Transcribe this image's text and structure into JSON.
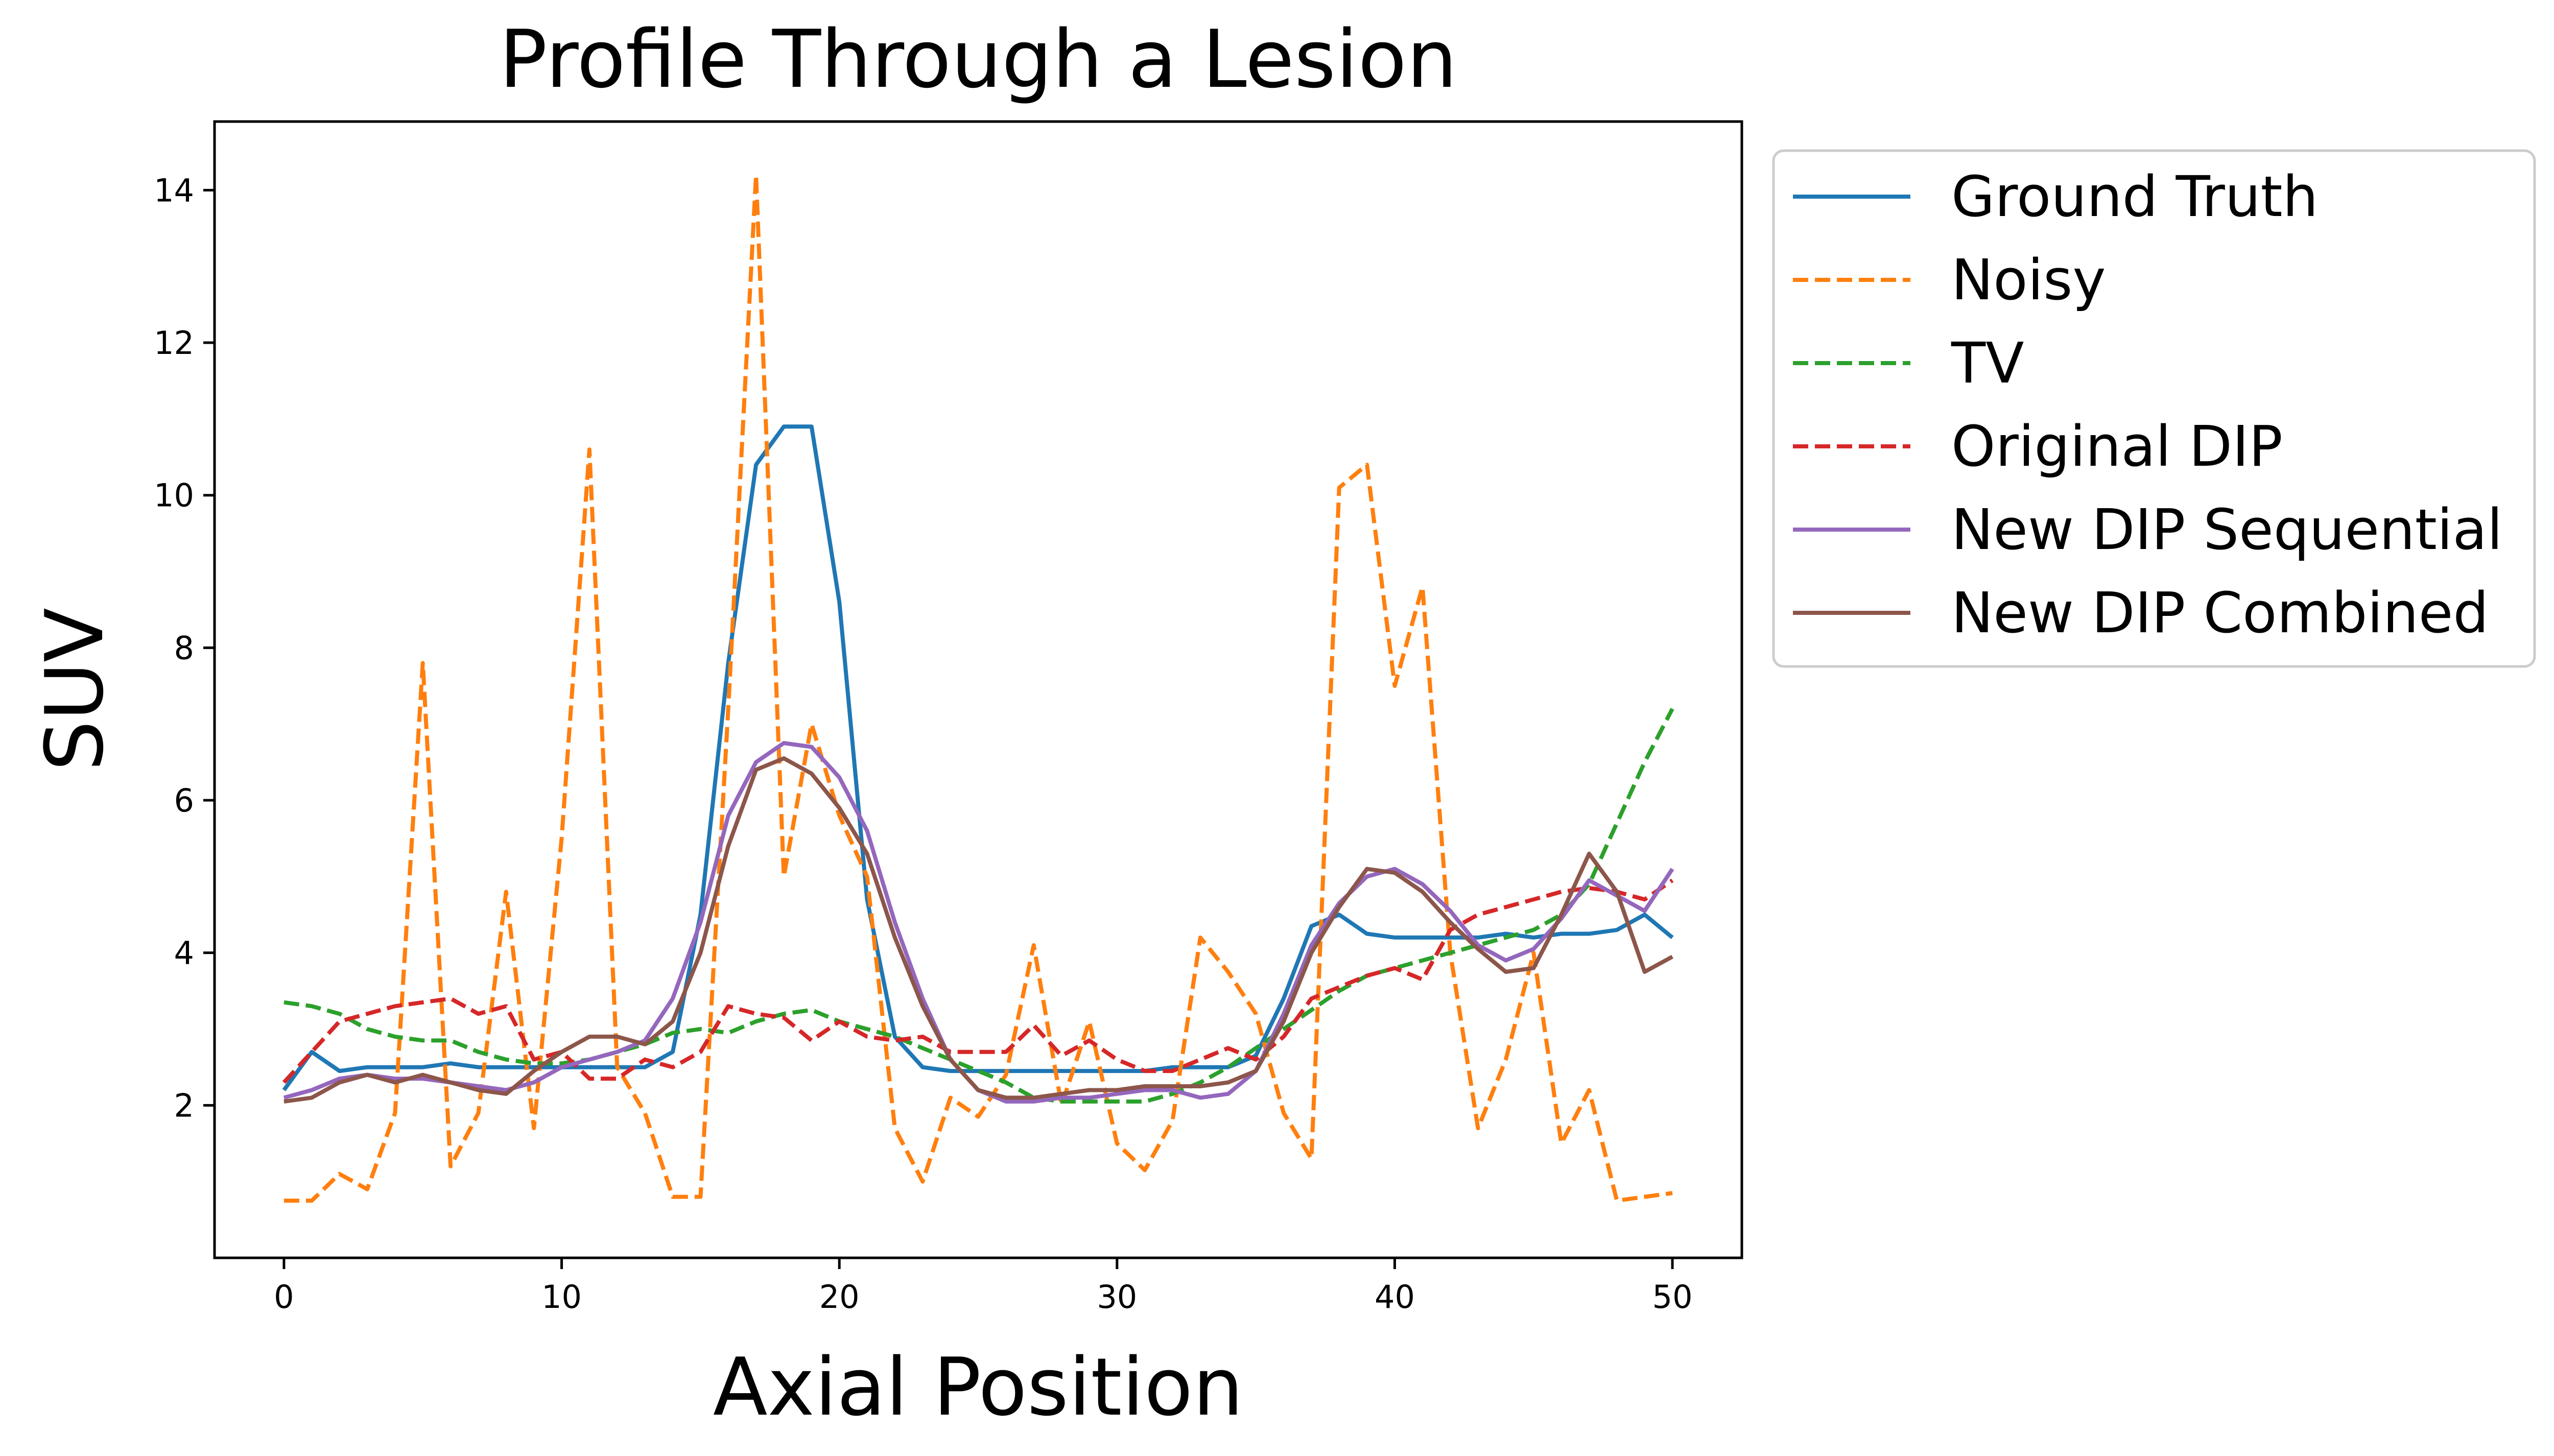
{
  "chart_data": {
    "type": "line",
    "title": "Profile Through a Lesion",
    "xlabel": "Axial Position",
    "ylabel": "SUV",
    "xlim": [
      -2.5,
      52.5
    ],
    "ylim": [
      0,
      14.9
    ],
    "xticks": [
      0,
      10,
      20,
      30,
      40,
      50
    ],
    "yticks": [
      2,
      4,
      6,
      8,
      10,
      12,
      14
    ],
    "grid": false,
    "legend_placement": "outside top-right",
    "series": [
      {
        "name": "Ground Truth",
        "color": "#1f77b4",
        "dash": "solid",
        "values": [
          2.2,
          2.7,
          2.45,
          2.5,
          2.5,
          2.5,
          2.55,
          2.5,
          2.5,
          2.5,
          2.5,
          2.5,
          2.5,
          2.5,
          2.7,
          4.5,
          7.8,
          10.4,
          10.9,
          10.9,
          8.6,
          4.7,
          2.9,
          2.5,
          2.45,
          2.45,
          2.45,
          2.45,
          2.45,
          2.45,
          2.45,
          2.45,
          2.5,
          2.5,
          2.5,
          2.65,
          3.4,
          4.35,
          4.5,
          4.25,
          4.2,
          4.2,
          4.2,
          4.2,
          4.25,
          4.2,
          4.25,
          4.25,
          4.3,
          4.5,
          4.2
        ]
      },
      {
        "name": "Noisy",
        "color": "#ff7f0e",
        "dash": "dashed",
        "values": [
          0.75,
          0.75,
          1.1,
          0.9,
          1.9,
          7.8,
          1.2,
          1.9,
          4.8,
          1.7,
          5.5,
          10.6,
          2.5,
          1.9,
          0.8,
          0.8,
          7.2,
          14.2,
          5.0,
          7.0,
          5.8,
          5.0,
          1.7,
          1.0,
          2.1,
          1.85,
          2.4,
          4.1,
          2.0,
          3.1,
          1.5,
          1.15,
          1.8,
          4.2,
          3.75,
          3.2,
          1.9,
          1.3,
          10.1,
          10.4,
          7.5,
          8.8,
          4.0,
          1.7,
          2.6,
          4.0,
          1.5,
          2.2,
          0.75,
          0.8,
          0.85
        ]
      },
      {
        "name": "TV",
        "color": "#2ca02c",
        "dash": "dashed",
        "values": [
          3.35,
          3.3,
          3.2,
          3.0,
          2.9,
          2.85,
          2.85,
          2.7,
          2.6,
          2.55,
          2.55,
          2.6,
          2.7,
          2.8,
          2.95,
          3.0,
          2.95,
          3.1,
          3.2,
          3.25,
          3.1,
          3.0,
          2.9,
          2.75,
          2.6,
          2.45,
          2.3,
          2.1,
          2.05,
          2.05,
          2.05,
          2.05,
          2.15,
          2.3,
          2.5,
          2.75,
          3.0,
          3.25,
          3.5,
          3.7,
          3.8,
          3.9,
          4.0,
          4.1,
          4.2,
          4.3,
          4.5,
          4.9,
          5.7,
          6.5,
          7.2
        ]
      },
      {
        "name": "Original DIP",
        "color": "#d62728",
        "dash": "dashed",
        "values": [
          2.3,
          2.7,
          3.1,
          3.2,
          3.3,
          3.35,
          3.4,
          3.2,
          3.3,
          2.6,
          2.7,
          2.35,
          2.35,
          2.6,
          2.5,
          2.7,
          3.3,
          3.2,
          3.15,
          2.85,
          3.1,
          2.9,
          2.85,
          2.9,
          2.7,
          2.7,
          2.7,
          3.05,
          2.65,
          2.85,
          2.6,
          2.45,
          2.45,
          2.6,
          2.75,
          2.6,
          2.9,
          3.4,
          3.55,
          3.7,
          3.8,
          3.65,
          4.3,
          4.5,
          4.6,
          4.7,
          4.8,
          4.85,
          4.8,
          4.7,
          4.95
        ]
      },
      {
        "name": "New DIP Sequential",
        "color": "#9467bd",
        "dash": "solid",
        "values": [
          2.1,
          2.2,
          2.35,
          2.4,
          2.35,
          2.35,
          2.3,
          2.25,
          2.2,
          2.3,
          2.5,
          2.6,
          2.7,
          2.85,
          3.4,
          4.4,
          5.8,
          6.5,
          6.75,
          6.7,
          6.3,
          5.6,
          4.4,
          3.4,
          2.6,
          2.2,
          2.05,
          2.05,
          2.1,
          2.1,
          2.15,
          2.2,
          2.2,
          2.1,
          2.15,
          2.45,
          3.2,
          4.1,
          4.65,
          5.0,
          5.1,
          4.9,
          4.55,
          4.1,
          3.9,
          4.05,
          4.45,
          4.95,
          4.75,
          4.55,
          5.1
        ]
      },
      {
        "name": "New DIP Combined",
        "color": "#8c564b",
        "dash": "solid",
        "values": [
          2.05,
          2.1,
          2.3,
          2.4,
          2.3,
          2.4,
          2.3,
          2.2,
          2.15,
          2.45,
          2.7,
          2.9,
          2.9,
          2.8,
          3.1,
          4.0,
          5.4,
          6.4,
          6.55,
          6.35,
          5.9,
          5.3,
          4.2,
          3.3,
          2.6,
          2.2,
          2.1,
          2.1,
          2.15,
          2.2,
          2.2,
          2.25,
          2.25,
          2.25,
          2.3,
          2.45,
          3.1,
          4.0,
          4.6,
          5.1,
          5.05,
          4.8,
          4.4,
          4.05,
          3.75,
          3.8,
          4.5,
          5.3,
          4.8,
          3.75,
          3.95
        ]
      }
    ]
  }
}
